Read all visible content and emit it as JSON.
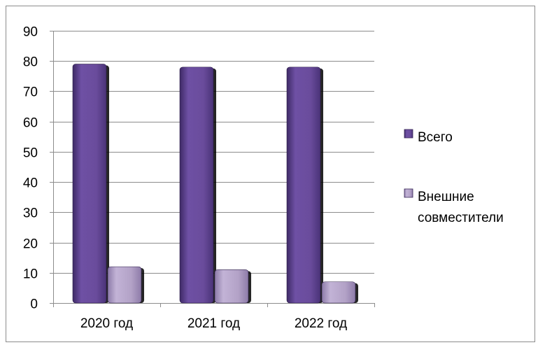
{
  "chart_data": {
    "type": "bar",
    "categories": [
      "2020 год",
      "2021 год",
      "2022 год"
    ],
    "series": [
      {
        "name": "Всего",
        "values": [
          79,
          78,
          78
        ],
        "color": "#6a4c9c"
      },
      {
        "name": "Внешние совместители",
        "values": [
          12,
          11,
          7
        ],
        "color": "#b3a2c7"
      }
    ],
    "ylim": [
      0,
      90
    ],
    "yticks": [
      0,
      10,
      20,
      30,
      40,
      50,
      60,
      70,
      80,
      90
    ],
    "grid": true,
    "legend_position": "right",
    "legend": [
      {
        "lines": [
          "Всего"
        ]
      },
      {
        "lines": [
          "Внешние",
          "совместители"
        ]
      }
    ]
  }
}
